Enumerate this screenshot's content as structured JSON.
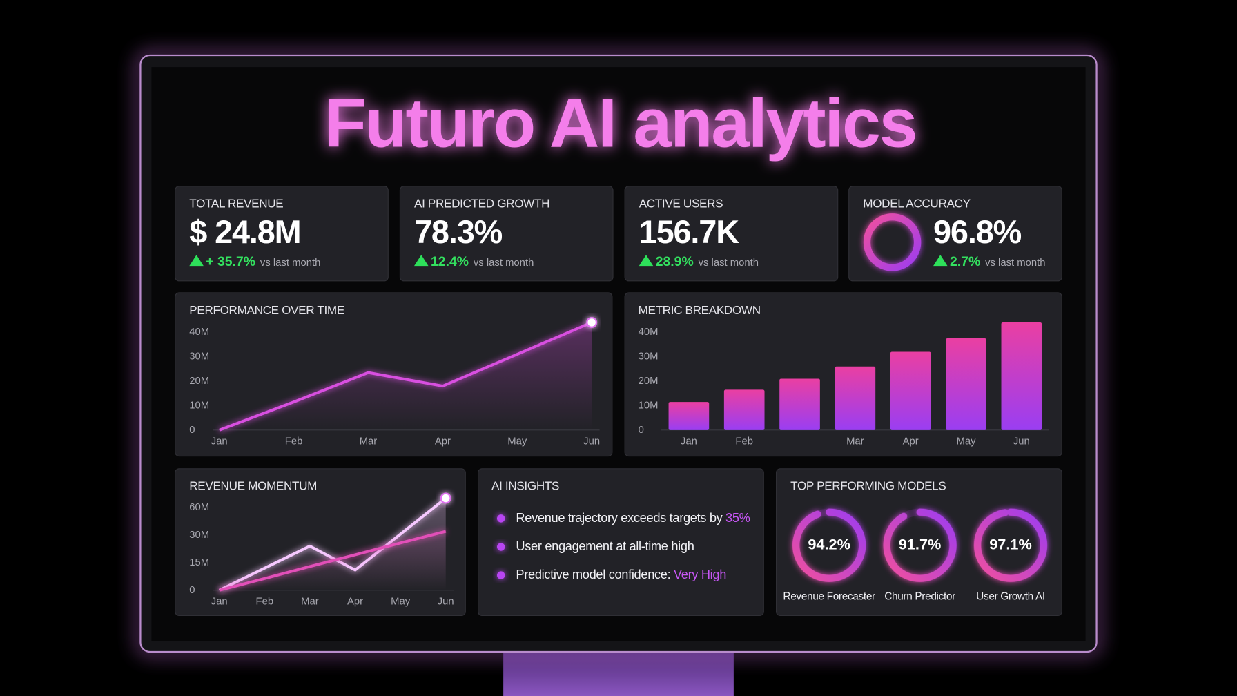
{
  "title": "Futuro AI analytics",
  "kpis": [
    {
      "label": "TOTAL REVENUE",
      "value": "$ 24.8M",
      "change": "+ 35.7%",
      "note": "vs last month"
    },
    {
      "label": "AI PREDICTED GROWTH",
      "value": "78.3%",
      "change": "12.4%",
      "note": "vs last month"
    },
    {
      "label": "ACTIVE USERS",
      "value": "156.7K",
      "change": "28.9%",
      "note": "vs last month"
    },
    {
      "label": "MODEL ACCURACY",
      "value": "96.8%",
      "change": "2.7%",
      "note": "vs last month"
    }
  ],
  "chart_data": [
    {
      "type": "line",
      "title": "PERFORMANCE OVER TIME",
      "categories": [
        "Jan",
        "Feb",
        "Mar",
        "Apr",
        "May",
        "Jun"
      ],
      "series": [
        {
          "color": "#d84fe0",
          "values": [
            0,
            11.5,
            23.5,
            18,
            31,
            44
          ]
        }
      ],
      "ylim": [
        0,
        45
      ],
      "yticks": [
        0,
        {
          "value": 10,
          "label": "10M"
        },
        {
          "value": 20,
          "label": "20M"
        },
        {
          "value": 30,
          "label": "30M"
        },
        {
          "value": 40,
          "label": "40M"
        }
      ],
      "grid": false
    },
    {
      "type": "bar",
      "title": "METRIC BREAKDOWN",
      "categories": [
        "Jan",
        "Feb",
        null,
        "Mar",
        "Apr",
        "May",
        "Jun"
      ],
      "values": [
        11.5,
        16.5,
        21,
        26,
        32,
        37.5,
        44
      ],
      "colors": [
        "#ea3fa2",
        "#9a3ef2"
      ],
      "ylim": [
        0,
        45
      ],
      "yticks": [
        0,
        {
          "value": 10,
          "label": "10M"
        },
        {
          "value": 20,
          "label": "20M"
        },
        {
          "value": 30,
          "label": "30M"
        },
        {
          "value": 40,
          "label": "40M"
        }
      ],
      "grid": false
    },
    {
      "type": "line",
      "title": "REVENUE MOMENTUM",
      "categories": [
        "Jan",
        "Feb",
        "Mar",
        "Apr",
        "May",
        "Jun"
      ],
      "series": [
        {
          "color": "#f6c9ff",
          "values": [
            0,
            12,
            24,
            11,
            31,
            70
          ]
        },
        {
          "color": "#e24fb8",
          "values": [
            0,
            6.4,
            12.9,
            19.3,
            25.7,
            34
          ]
        }
      ],
      "ylim": [
        0,
        75
      ],
      "yticks": [
        0,
        {
          "value": 15,
          "label": "15M"
        },
        {
          "value": 30,
          "label": "30M"
        },
        {
          "value": 60,
          "label": "60M"
        }
      ],
      "grid": false
    },
    {
      "type": "ring",
      "title": "TOP PERFORMING MODELS",
      "categories": [
        "Revenue Forecaster",
        "Churn Predictor",
        "User Growth AI"
      ],
      "values": [
        94.2,
        91.7,
        97.1
      ],
      "value_labels": [
        "94.2%",
        "91.7%",
        "97.1%"
      ],
      "colors": [
        "#f0509e",
        "#9d3cf0"
      ]
    }
  ],
  "insights": {
    "title": "AI INSIGHTS",
    "items": [
      {
        "text": "Revenue trajectory exceeds targets by",
        "highlight": "35%"
      },
      {
        "text": "User engagement at all-time high"
      },
      {
        "text": "Predictive model confidence:",
        "highlight": "Very High"
      }
    ]
  }
}
